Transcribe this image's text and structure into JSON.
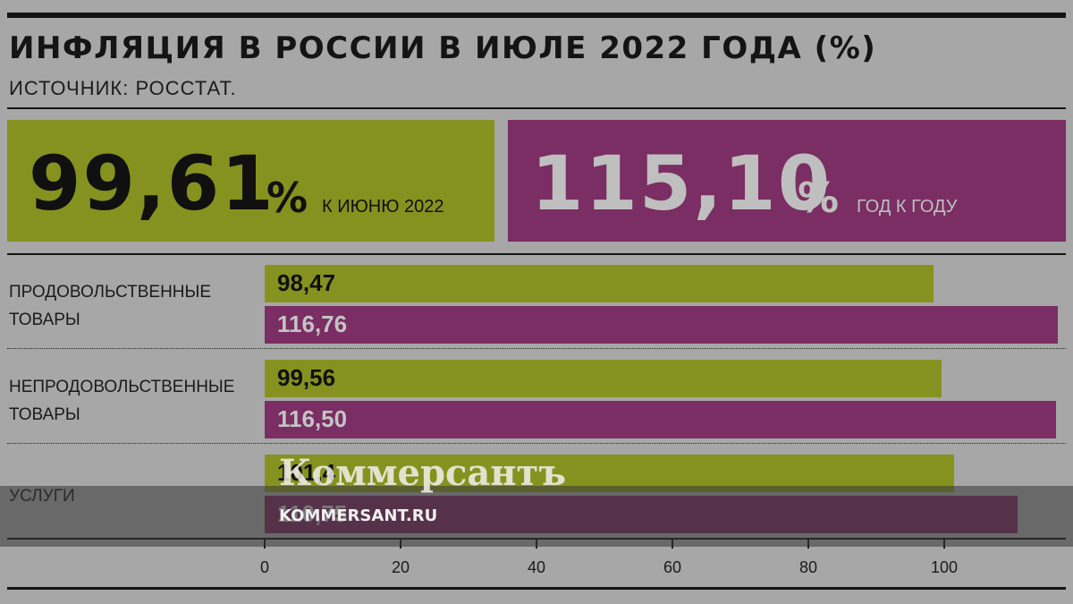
{
  "header": {
    "title": "ИНФЛЯЦИЯ В РОССИИ В ИЮЛЕ 2022 ГОДА (%)",
    "source": "ИСТОЧНИК: РОССТАТ."
  },
  "summary": {
    "month": {
      "value": "99,61",
      "unit": "%",
      "caption": "К ИЮНЮ 2022",
      "color": "#86921f"
    },
    "year": {
      "value": "115,10",
      "unit": "%",
      "caption": "ГОД К ГОДУ",
      "color": "#7a2e63"
    }
  },
  "chart_data": {
    "type": "bar",
    "orientation": "horizontal",
    "categories": [
      [
        "ПРОДОВОЛЬСТВЕННЫЕ",
        "ТОВАРЫ"
      ],
      [
        "НЕПРОДОВОЛЬСТВЕННЫЕ",
        "ТОВАРЫ"
      ],
      [
        "УСЛУГИ"
      ]
    ],
    "series": [
      {
        "values": [
          98.47,
          99.56,
          101.4
        ],
        "labels": [
          "98,47",
          "99,56",
          "101,4"
        ],
        "color": "#86921f"
      },
      {
        "values": [
          116.76,
          116.5,
          110.75
        ],
        "labels": [
          "116,76",
          "116,50",
          "110,75"
        ],
        "color": "#7a2e63"
      }
    ],
    "xlim": [
      0,
      117
    ],
    "xticks": [
      0,
      20,
      40,
      60,
      80,
      100
    ],
    "xticklabels": [
      "0",
      "20",
      "40",
      "60",
      "80",
      "100"
    ]
  },
  "watermark": {
    "logo": "Коммерсантъ",
    "url": "KOMMERSANT.RU"
  }
}
